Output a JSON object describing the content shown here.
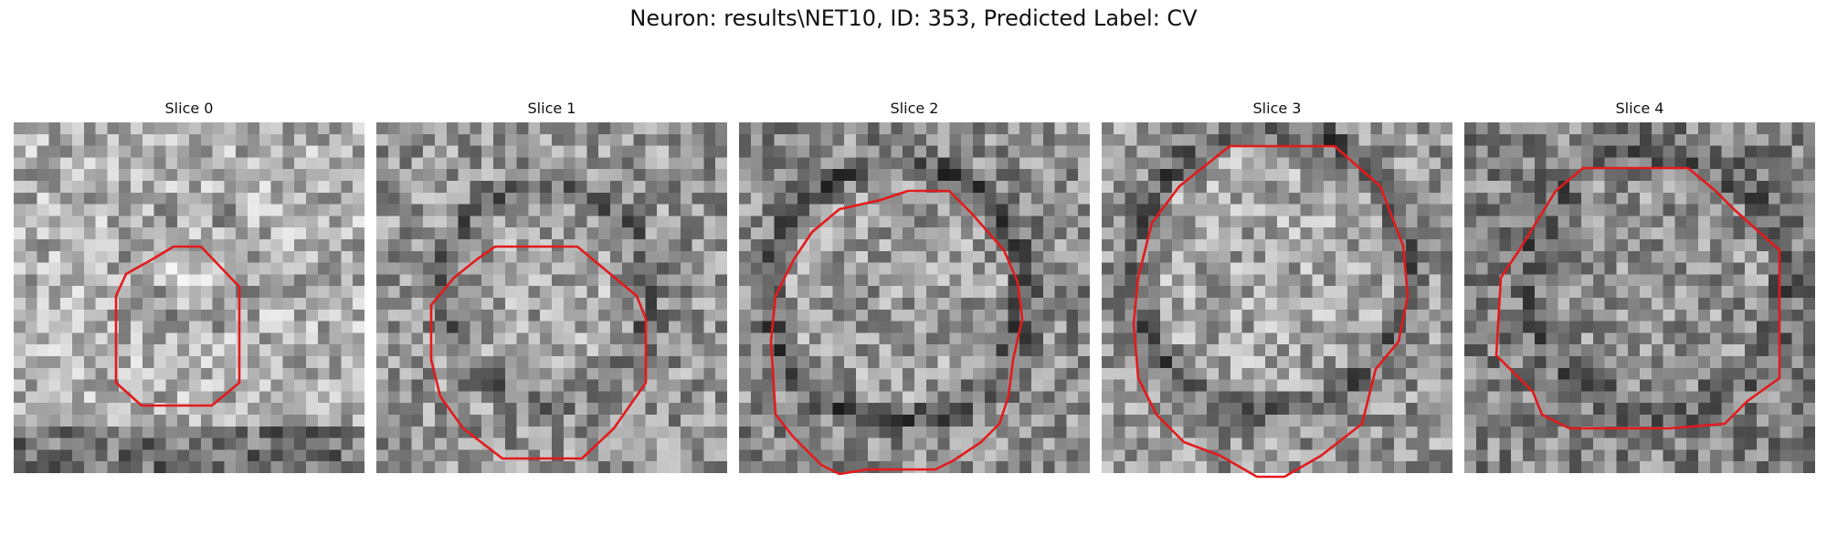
{
  "figure": {
    "title": "Neuron: results\\NET10, ID: 353, Predicted Label: CV"
  },
  "colors": {
    "contour": "#e31a1c",
    "colormap": "grayscale"
  },
  "slices": [
    {
      "label": "Slice 0"
    },
    {
      "label": "Slice 1"
    },
    {
      "label": "Slice 2"
    },
    {
      "label": "Slice 3"
    },
    {
      "label": "Slice 4"
    }
  ]
}
